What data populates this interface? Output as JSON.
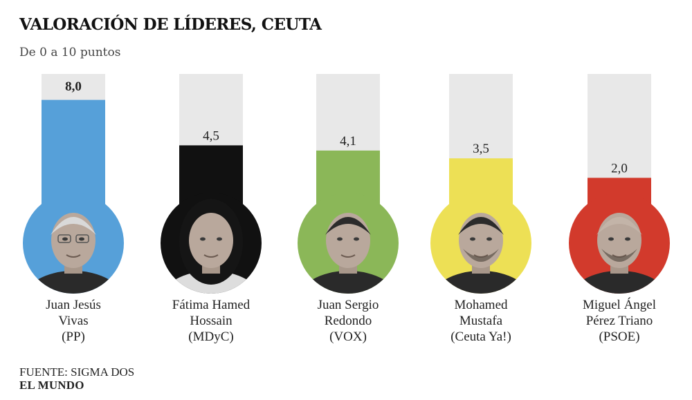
{
  "title": "VALORACIÓN DE LÍDERES, CEUTA",
  "subtitle": "De 0 a 10 puntos",
  "chart_data": {
    "type": "bar",
    "title": "VALORACIÓN DE LÍDERES, CEUTA",
    "subtitle": "De 0 a 10 puntos",
    "ylim": [
      0,
      10
    ],
    "categories": [
      "Juan Jesús Vivas (PP)",
      "Fátima Hamed Hossain (MDyC)",
      "Juan Sergio Redondo (VOX)",
      "Mohamed Mustafa (Ceuta Ya!)",
      "Miguel Ángel Pérez Triano (PSOE)"
    ],
    "values": [
      8.0,
      4.5,
      4.1,
      3.5,
      2.0
    ],
    "value_labels": [
      "8,0",
      "4,5",
      "4,1",
      "3,5",
      "2,0"
    ],
    "colors": [
      "#56a0d9",
      "#111111",
      "#8bb758",
      "#ede055",
      "#d23a2c"
    ],
    "track_color": "#e8e8e8",
    "leaders": [
      {
        "line1": "Juan Jesús",
        "line2": "Vivas",
        "party": "(PP)"
      },
      {
        "line1": "Fátima Hamed",
        "line2": "Hossain",
        "party": "(MDyC)"
      },
      {
        "line1": "Juan Sergio",
        "line2": "Redondo",
        "party": "(VOX)"
      },
      {
        "line1": "Mohamed",
        "line2": "Mustafa",
        "party": "(Ceuta Ya!)"
      },
      {
        "line1": "Miguel Ángel",
        "line2": "Pérez Triano",
        "party": "(PSOE)"
      }
    ]
  },
  "footer": {
    "source_label": "FUENTE:",
    "source": "SIGMA DOS",
    "brand": "EL MUNDO"
  }
}
